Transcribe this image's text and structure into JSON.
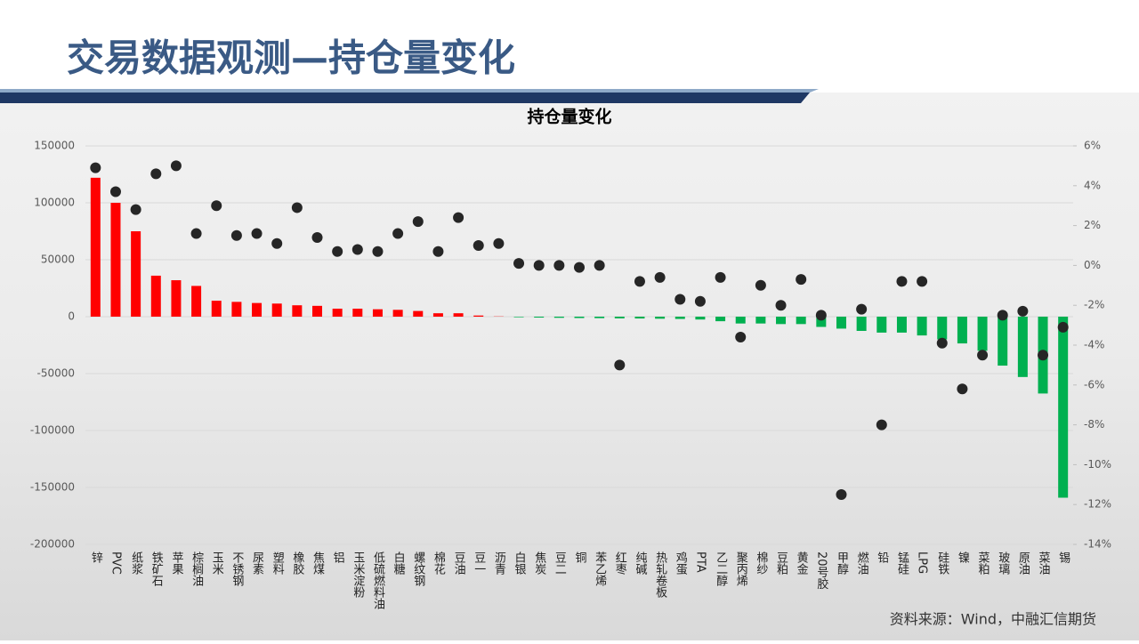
{
  "header": {
    "title": "交易数据观测—持仓量变化"
  },
  "source": "资料来源：Wind，中融汇信期货",
  "chart_data": {
    "type": "combo",
    "title": "持仓量变化",
    "categories": [
      "锌",
      "PVC",
      "纸浆",
      "铁矿石",
      "苹果",
      "棕榈油",
      "玉米",
      "不锈钢",
      "尿素",
      "塑料",
      "橡胶",
      "焦煤",
      "铝",
      "玉米淀粉",
      "低硫燃料油",
      "白糖",
      "螺纹钢",
      "棉花",
      "豆油",
      "豆一",
      "沥青",
      "白银",
      "焦炭",
      "豆二",
      "铜",
      "苯乙烯",
      "红枣",
      "纯碱",
      "热轧卷板",
      "鸡蛋",
      "PTA",
      "乙二醇",
      "聚丙烯",
      "棉纱",
      "豆粕",
      "黄金",
      "20号胶",
      "甲醇",
      "燃油",
      "铅",
      "锰硅",
      "LPG",
      "硅铁",
      "镍",
      "菜粕",
      "玻璃",
      "原油",
      "菜油",
      "锡"
    ],
    "series": [
      {
        "type": "bar",
        "color": "#ff0000",
        "negative_color": "#00b050",
        "values": [
          122000,
          100000,
          75000,
          36000,
          32000,
          27000,
          14000,
          13000,
          12000,
          11500,
          10000,
          9500,
          7000,
          7000,
          6500,
          6000,
          5000,
          3000,
          3000,
          1000,
          200,
          -500,
          -800,
          -1000,
          -1200,
          -1300,
          -1500,
          -1600,
          -1800,
          -2000,
          -2500,
          -4000,
          -6000,
          -6000,
          -6500,
          -6500,
          -9000,
          -10500,
          -12500,
          -14000,
          -14000,
          -16500,
          -20000,
          -23500,
          -30000,
          -43000,
          -53000,
          -67500,
          -159000
        ]
      },
      {
        "type": "scatter",
        "axis": "y2",
        "color": "#262626",
        "values": [
          4.9,
          3.7,
          2.8,
          4.6,
          5.0,
          1.6,
          3.0,
          1.5,
          1.6,
          1.1,
          2.9,
          1.4,
          0.7,
          0.8,
          0.7,
          1.6,
          2.2,
          0.7,
          2.4,
          1.0,
          1.1,
          0.1,
          0,
          0,
          -0.1,
          0,
          -5.0,
          -0.8,
          -0.6,
          -1.7,
          -1.8,
          -0.6,
          -3.6,
          -1.0,
          -2.0,
          -0.7,
          -2.5,
          -11.5,
          -2.2,
          -8.0,
          -0.8,
          -0.8,
          -3.9,
          -6.2,
          -4.5,
          -2.5,
          -2.3,
          -4.5,
          -3.1
        ]
      }
    ],
    "ylim": [
      -200000,
      150000
    ],
    "yticks": [
      150000,
      100000,
      50000,
      0,
      -50000,
      -100000,
      -150000,
      -200000
    ],
    "y2lim": [
      -14,
      6
    ],
    "y2ticks": [
      {
        "value": 6,
        "label": "6%"
      },
      {
        "value": 4,
        "label": "4%"
      },
      {
        "value": 2,
        "label": "2%"
      },
      {
        "value": 0,
        "label": "0%"
      },
      {
        "value": -2,
        "label": "-2%"
      },
      {
        "value": -4,
        "label": "-4%"
      },
      {
        "value": -6,
        "label": "-6%"
      },
      {
        "value": -8,
        "label": "-8%"
      },
      {
        "value": -10,
        "label": "-10%"
      },
      {
        "value": -12,
        "label": "-12%"
      },
      {
        "value": -14,
        "label": "-14%"
      }
    ],
    "grid": true
  }
}
